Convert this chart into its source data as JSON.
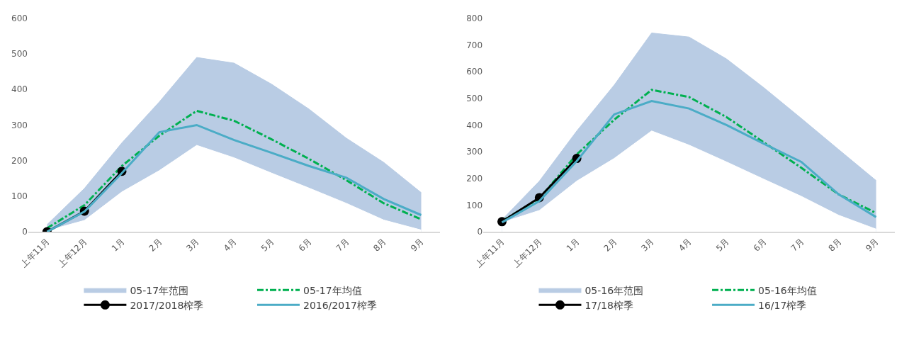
{
  "chart_data": [
    {
      "type": "line",
      "categories": [
        "上年11月",
        "上年12月",
        "1月",
        "2月",
        "3月",
        "4月",
        "5月",
        "6月",
        "7月",
        "8月",
        "9月"
      ],
      "ylim": [
        0,
        600
      ],
      "yticks": [
        0,
        100,
        200,
        300,
        400,
        500,
        600
      ],
      "grid": false,
      "legend": "bottom",
      "series": [
        {
          "name": "05-17年范围",
          "type": "area",
          "color": "#b9cce4",
          "values": [
            20,
            122,
            250,
            365,
            490,
            474,
            415,
            345,
            263,
            195,
            110
          ]
        },
        {
          "type": "area",
          "color": "#ffffff",
          "values": [
            3,
            32,
            112,
            172,
            243,
            208,
            165,
            123,
            80,
            33,
            5
          ]
        },
        {
          "name": "05-17年均值",
          "type": "line",
          "color": "#00b050",
          "line_style": "dashdot",
          "marker": "none",
          "values": [
            10,
            75,
            185,
            270,
            340,
            312,
            260,
            205,
            145,
            80,
            35
          ]
        },
        {
          "name": "2017/2018榨季",
          "type": "line",
          "color": "#000000",
          "line_style": "solid",
          "marker": "circle",
          "values": [
            0,
            58,
            170,
            null,
            null,
            null,
            null,
            null,
            null,
            null,
            null
          ]
        },
        {
          "name": "2016/2017榨季",
          "type": "line",
          "color": "#4bacc6",
          "line_style": "solid",
          "marker": "none",
          "values": [
            0,
            57,
            165,
            280,
            300,
            258,
            222,
            185,
            152,
            92,
            47
          ]
        }
      ]
    },
    {
      "type": "line",
      "categories": [
        "上年11月",
        "上年12月",
        "1月",
        "2月",
        "3月",
        "4月",
        "5月",
        "6月",
        "7月",
        "8月",
        "9月"
      ],
      "ylim": [
        0,
        800
      ],
      "yticks": [
        0,
        100,
        200,
        300,
        400,
        500,
        600,
        700,
        800
      ],
      "grid": false,
      "legend": "bottom",
      "series": [
        {
          "name": "05-16年范围",
          "type": "area",
          "color": "#b9cce4",
          "values": [
            45,
            190,
            378,
            550,
            745,
            730,
            648,
            540,
            425,
            308,
            192
          ]
        },
        {
          "type": "area",
          "color": "#ffffff",
          "values": [
            35,
            80,
            190,
            275,
            378,
            325,
            262,
            197,
            133,
            62,
            10
          ]
        },
        {
          "name": "05-16年均值",
          "type": "line",
          "color": "#00b050",
          "line_style": "dashdot",
          "marker": "none",
          "values": [
            40,
            125,
            290,
            420,
            532,
            505,
            430,
            335,
            240,
            140,
            70
          ]
        },
        {
          "name": "17/18榨季",
          "type": "line",
          "color": "#000000",
          "line_style": "solid",
          "marker": "circle",
          "values": [
            38,
            128,
            275,
            null,
            null,
            null,
            null,
            null,
            null,
            null,
            null
          ]
        },
        {
          "name": "16/17榨季",
          "type": "line",
          "color": "#4bacc6",
          "line_style": "solid",
          "marker": "none",
          "values": [
            35,
            115,
            265,
            440,
            490,
            462,
            400,
            330,
            262,
            140,
            55
          ]
        }
      ]
    }
  ]
}
